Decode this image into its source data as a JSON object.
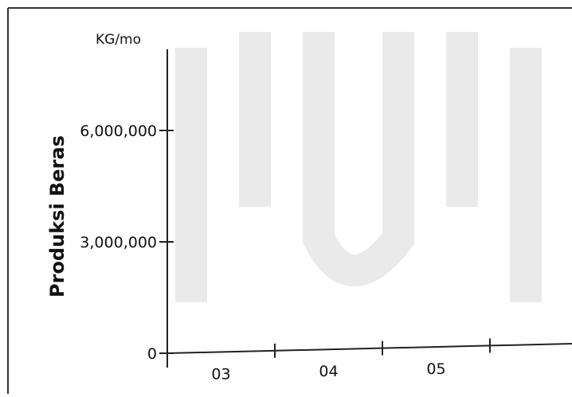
{
  "chart_data": {
    "type": "line",
    "title": "",
    "ylabel": "Produksi Beras",
    "yunit": "KG/mo",
    "xlabel": "",
    "categories": [
      "03",
      "04",
      "05"
    ],
    "ylim": [
      0,
      8000000
    ],
    "yticks": [
      {
        "value": 0,
        "label": "0"
      },
      {
        "value": 3000000,
        "label": "3,000,000"
      },
      {
        "value": 6000000,
        "label": "6,000,000"
      }
    ],
    "series": [],
    "grid": false,
    "legend": "none"
  }
}
